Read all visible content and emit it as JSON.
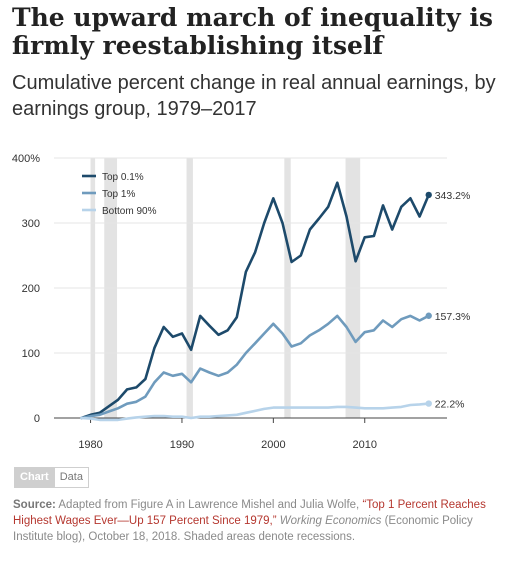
{
  "title": "The upward march of inequality is firmly reestablishing itself",
  "subtitle": "Cumulative percent change in real annual earnings, by earnings group, 1979–2017",
  "chart_data": {
    "type": "line",
    "xlim": [
      1976,
      2019
    ],
    "ylim": [
      0,
      400
    ],
    "yticks": [
      0,
      100,
      200,
      300,
      400
    ],
    "ytick_labels": [
      "0",
      "100",
      "200",
      "300",
      "400%"
    ],
    "xticks": [
      1980,
      1990,
      2000,
      2010
    ],
    "xtick_labels": [
      "1980",
      "1990",
      "2000",
      "2010"
    ],
    "grid": true,
    "legend_position": "top-left",
    "recessions": [
      [
        1980.0,
        1980.5
      ],
      [
        1981.5,
        1982.9
      ],
      [
        1990.5,
        1991.2
      ],
      [
        2001.2,
        2001.9
      ],
      [
        2007.9,
        2009.5
      ]
    ],
    "x": [
      1979,
      1980,
      1981,
      1982,
      1983,
      1984,
      1985,
      1986,
      1987,
      1988,
      1989,
      1990,
      1991,
      1992,
      1993,
      1994,
      1995,
      1996,
      1997,
      1998,
      1999,
      2000,
      2001,
      2002,
      2003,
      2004,
      2005,
      2006,
      2007,
      2008,
      2009,
      2010,
      2011,
      2012,
      2013,
      2014,
      2015,
      2016,
      2017
    ],
    "series": [
      {
        "name": "Top 0.1%",
        "color": "#1d4a6b",
        "values": [
          0,
          5,
          8,
          18,
          28,
          44,
          47,
          60,
          108,
          140,
          125,
          130,
          105,
          157,
          142,
          128,
          135,
          155,
          225,
          255,
          300,
          338,
          300,
          240,
          250,
          290,
          307,
          325,
          362,
          310,
          241,
          278,
          280,
          327,
          290,
          325,
          338,
          310,
          343.2
        ],
        "end_label": "343.2%"
      },
      {
        "name": "Top 1%",
        "color": "#6f9bbd",
        "values": [
          0,
          3,
          5,
          10,
          15,
          22,
          25,
          33,
          55,
          70,
          65,
          68,
          55,
          76,
          70,
          65,
          70,
          82,
          100,
          115,
          130,
          145,
          130,
          110,
          115,
          127,
          135,
          145,
          157,
          140,
          117,
          132,
          135,
          150,
          140,
          152,
          157,
          150,
          157.3
        ],
        "end_label": "157.3%"
      },
      {
        "name": "Bottom 90%",
        "color": "#b7d3ea",
        "values": [
          0,
          -1,
          -3,
          -3,
          -3,
          -1,
          1,
          2,
          3,
          3,
          2,
          2,
          0,
          2,
          2,
          3,
          4,
          5,
          8,
          11,
          14,
          16,
          16,
          16,
          16,
          16,
          16,
          16,
          17,
          17,
          16,
          15,
          15,
          15,
          16,
          17,
          20,
          21,
          22.2
        ],
        "end_label": "22.2%"
      }
    ]
  },
  "tabs": {
    "chart": "Chart",
    "data": "Data"
  },
  "source": {
    "label": "Source:",
    "text1": " Adapted from Figure A in Lawrence Mishel and Julia Wolfe, ",
    "link": "“Top 1 Percent Reaches Highest Wages Ever—Up 157 Percent Since 1979,”",
    "text2": " ",
    "publication": "Working Economics",
    "text3": " (Economic Policy Institute blog), October 18, 2018. Shaded areas denote recessions."
  }
}
